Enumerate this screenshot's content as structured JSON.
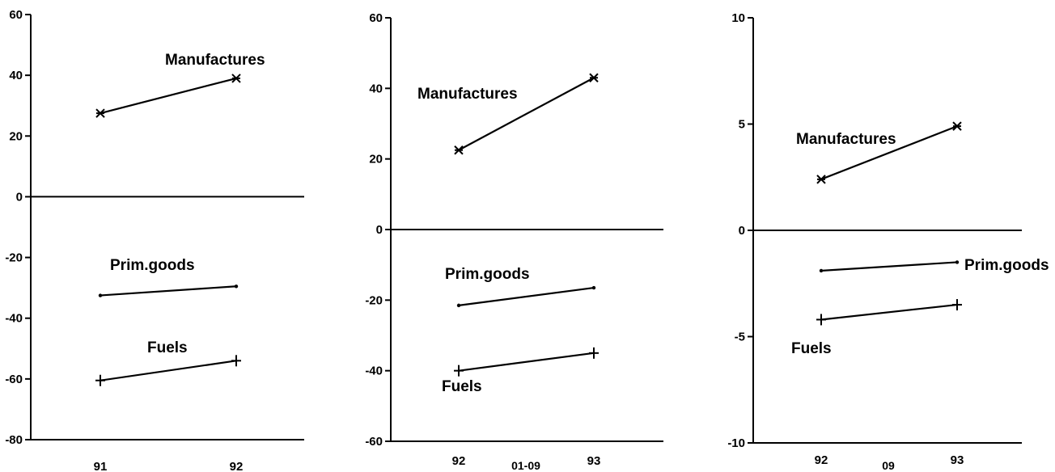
{
  "chart_data": [
    {
      "type": "line",
      "ylim": [
        -80,
        60
      ],
      "yticks": [
        "60",
        "40",
        "20",
        "0",
        "-20",
        "-40",
        "-60",
        "-80"
      ],
      "x": [
        "91",
        "92"
      ],
      "series": [
        {
          "name": "Manufactures",
          "values": [
            27.5,
            39
          ],
          "marker": "star"
        },
        {
          "name": "Prim.goods",
          "values": [
            -32.5,
            -29.5
          ],
          "marker": "dot"
        },
        {
          "name": "Fuels",
          "values": [
            -60.5,
            -54
          ],
          "marker": "plus"
        }
      ]
    },
    {
      "type": "line",
      "ylim": [
        -60,
        60
      ],
      "yticks": [
        "60",
        "40",
        "20",
        "0",
        "-20",
        "-40",
        "-60"
      ],
      "x": [
        "92",
        "93"
      ],
      "xnote": "01-09",
      "series": [
        {
          "name": "Manufactures",
          "values": [
            22.5,
            43
          ],
          "marker": "star"
        },
        {
          "name": "Prim.goods",
          "values": [
            -21.5,
            -16.5
          ],
          "marker": "dot"
        },
        {
          "name": "Fuels",
          "values": [
            -40,
            -35
          ],
          "marker": "plus"
        }
      ]
    },
    {
      "type": "line",
      "ylim": [
        -10,
        10
      ],
      "yticks": [
        "10",
        "5",
        "0",
        "-5",
        "-10"
      ],
      "x": [
        "92",
        "93"
      ],
      "xnote": "09",
      "series": [
        {
          "name": "Manufactures",
          "values": [
            2.4,
            4.9
          ],
          "marker": "star"
        },
        {
          "name": "Prim.goods",
          "values": [
            -1.9,
            -1.5
          ],
          "marker": "dot"
        },
        {
          "name": "Fuels",
          "values": [
            -4.2,
            -3.5
          ],
          "marker": "plus"
        }
      ]
    }
  ]
}
